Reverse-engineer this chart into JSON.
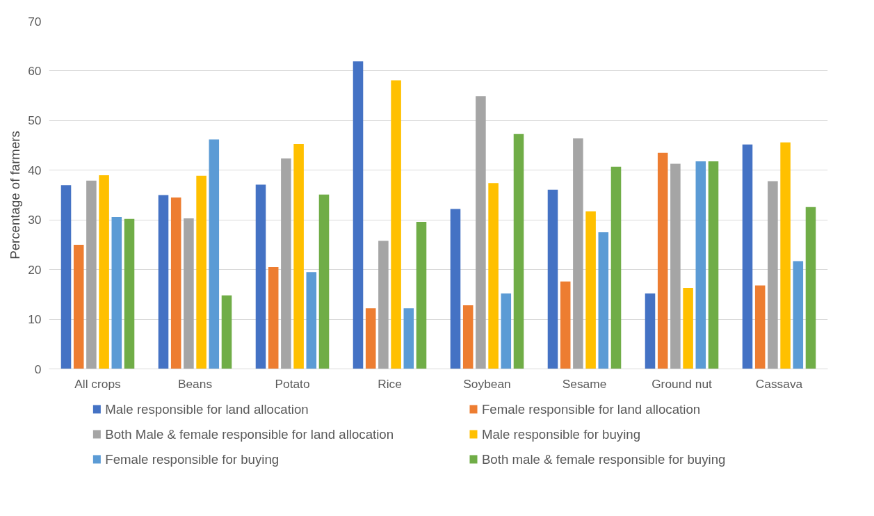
{
  "chart_data": {
    "type": "bar",
    "ylabel": "Percentage of farmers",
    "categories": [
      "All crops",
      "Beans",
      "Potato",
      "Rice",
      "Soybean",
      "Sesame",
      "Ground nut",
      "Cassava"
    ],
    "series": [
      {
        "name": "Male responsible for land allocation",
        "color": "#4472c4",
        "values": [
          37,
          35,
          37.1,
          61.9,
          32.2,
          36.1,
          15.2,
          45.2
        ]
      },
      {
        "name": "Female responsible for land allocation",
        "color": "#ed7d31",
        "values": [
          25,
          34.5,
          20.5,
          12.2,
          12.8,
          17.6,
          43.5,
          16.8
        ]
      },
      {
        "name": "Both Male & female responsible for land allocation",
        "color": "#a5a5a5",
        "values": [
          37.9,
          30.3,
          42.4,
          25.8,
          54.9,
          46.4,
          41.3,
          37.8
        ]
      },
      {
        "name": "Male responsible for buying",
        "color": "#ffc000",
        "values": [
          39,
          38.9,
          45.3,
          58.1,
          37.4,
          31.7,
          16.3,
          45.6
        ]
      },
      {
        "name": "Female responsible for buying",
        "color": "#5b9bd5",
        "values": [
          30.6,
          46.2,
          19.5,
          12.2,
          15.2,
          27.5,
          41.8,
          21.7
        ]
      },
      {
        "name": "Both male & female responsible for buying",
        "color": "#70ad47",
        "values": [
          30.2,
          14.8,
          35.1,
          29.6,
          47.3,
          40.7,
          41.8,
          32.6
        ]
      }
    ],
    "ylim": [
      0,
      70
    ],
    "yticks": [
      0,
      10,
      20,
      30,
      40,
      50,
      60,
      70
    ],
    "grid": "y",
    "legend": "bottom"
  }
}
